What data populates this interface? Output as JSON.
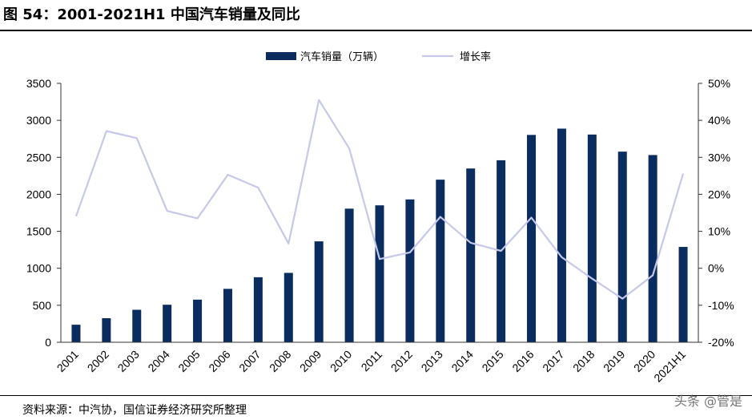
{
  "header": {
    "title": "图 54：2001-2021H1 中国汽车销量及同比"
  },
  "footer": {
    "source": "资料来源：中汽协，国信证券经济研究所整理",
    "watermark": "头条 @管是"
  },
  "chart_data": {
    "type": "bar",
    "categories": [
      "2001",
      "2002",
      "2003",
      "2004",
      "2005",
      "2006",
      "2007",
      "2008",
      "2009",
      "2010",
      "2011",
      "2012",
      "2013",
      "2014",
      "2015",
      "2016",
      "2017",
      "2018",
      "2019",
      "2020",
      "2021H1"
    ],
    "series": [
      {
        "name": "汽车销量（万辆）",
        "type": "bar",
        "axis": "left",
        "color": "#0b2c5e",
        "values": [
          237,
          325,
          439,
          507,
          576,
          722,
          879,
          938,
          1364,
          1806,
          1851,
          1931,
          2198,
          2349,
          2460,
          2803,
          2888,
          2808,
          2577,
          2531,
          1289
        ]
      },
      {
        "name": "增长率",
        "type": "line",
        "axis": "right",
        "color": "#c5c8e8",
        "values": [
          14.1,
          37.1,
          35.2,
          15.5,
          13.5,
          25.3,
          21.8,
          6.7,
          45.5,
          32.4,
          2.5,
          4.3,
          13.9,
          6.9,
          4.7,
          13.7,
          3.0,
          -2.8,
          -8.2,
          -1.9,
          25.6
        ]
      }
    ],
    "y_left": {
      "ylim": [
        0,
        3500
      ],
      "ticks": [
        0,
        500,
        1000,
        1500,
        2000,
        2500,
        3000,
        3500
      ]
    },
    "y_right": {
      "ylim": [
        -20,
        50
      ],
      "ticks": [
        -20,
        -10,
        0,
        10,
        20,
        30,
        40,
        50
      ],
      "tick_labels": [
        "-20%",
        "-10%",
        "0%",
        "10%",
        "20%",
        "30%",
        "40%",
        "50%"
      ]
    },
    "legend": {
      "placement": "top-center"
    },
    "grid": false
  }
}
